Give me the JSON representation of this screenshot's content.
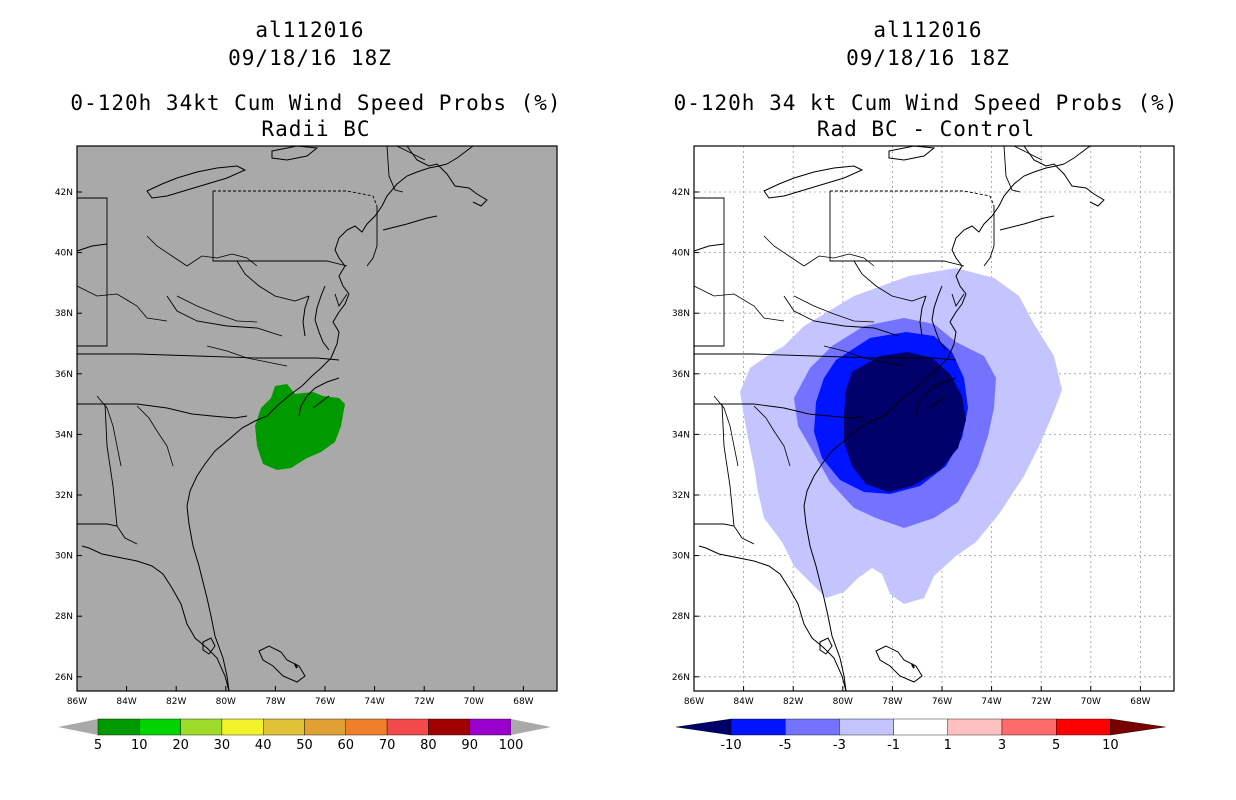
{
  "left_panel": {
    "title_line1": "al112016",
    "title_line2": "09/18/16 18Z",
    "subtitle_line1": "0-120h 34kt Cum Wind Speed Probs (%)",
    "subtitle_line2": "Radii BC",
    "background_color": "#a9a9a9",
    "legend_labels": [
      "5",
      "10",
      "20",
      "30",
      "40",
      "50",
      "60",
      "70",
      "80",
      "90",
      "100"
    ],
    "legend_colors": [
      "#009a00",
      "#00d400",
      "#9fdc2a",
      "#f2f22a",
      "#e0c236",
      "#e0a034",
      "#ef7f2a",
      "#f24a4a",
      "#a00000",
      "#9900cc"
    ],
    "feature_color": "#009a00"
  },
  "right_panel": {
    "title_line1": "al112016",
    "title_line2": "09/18/16 18Z",
    "subtitle_line1": "0-120h 34 kt Cum Wind Speed Probs (%)",
    "subtitle_line2": "Rad BC - Control",
    "background_color": "#ffffff",
    "legend_labels": [
      "-10",
      "-5",
      "-3",
      "-1",
      "1",
      "3",
      "5",
      "10"
    ],
    "legend_colors": [
      "#00006a",
      "#0014ff",
      "#7373ff",
      "#c4c4ff",
      "#ffffff",
      "#ffc0c0",
      "#ff6a6a",
      "#ff0000",
      "#7a0000"
    ],
    "contour_colors": [
      "#c4c4ff",
      "#7373ff",
      "#0014ff",
      "#00006a"
    ]
  },
  "axes": {
    "lat_labels": [
      "42N",
      "40N",
      "38N",
      "36N",
      "34N",
      "32N",
      "30N",
      "28N",
      "26N"
    ],
    "lon_labels": [
      "86W",
      "84W",
      "82W",
      "80W",
      "78W",
      "76W",
      "74W",
      "72W",
      "70W",
      "68W"
    ]
  }
}
